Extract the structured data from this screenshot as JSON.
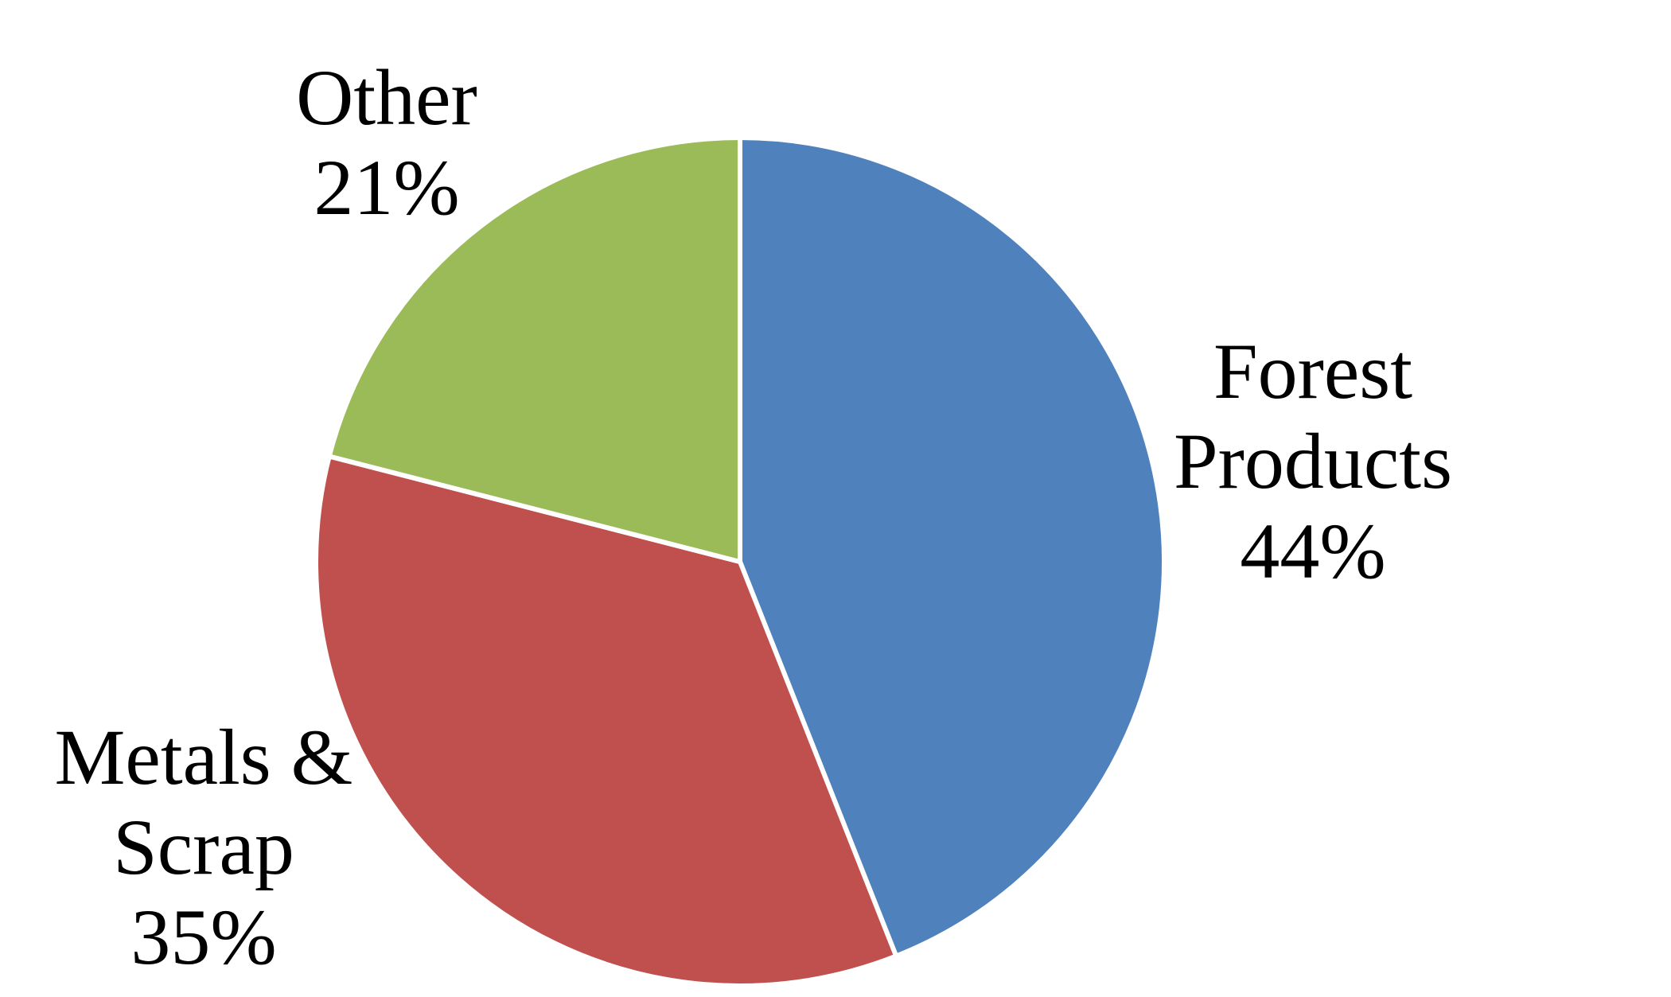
{
  "chart_data": {
    "type": "pie",
    "categories": [
      "Forest Products",
      "Metals & Scrap",
      "Other"
    ],
    "values": [
      44,
      35,
      21
    ],
    "value_labels": [
      "44%",
      "35%",
      "21%"
    ],
    "colors": [
      "#4f81bd",
      "#c0504d",
      "#9bbb59"
    ]
  }
}
